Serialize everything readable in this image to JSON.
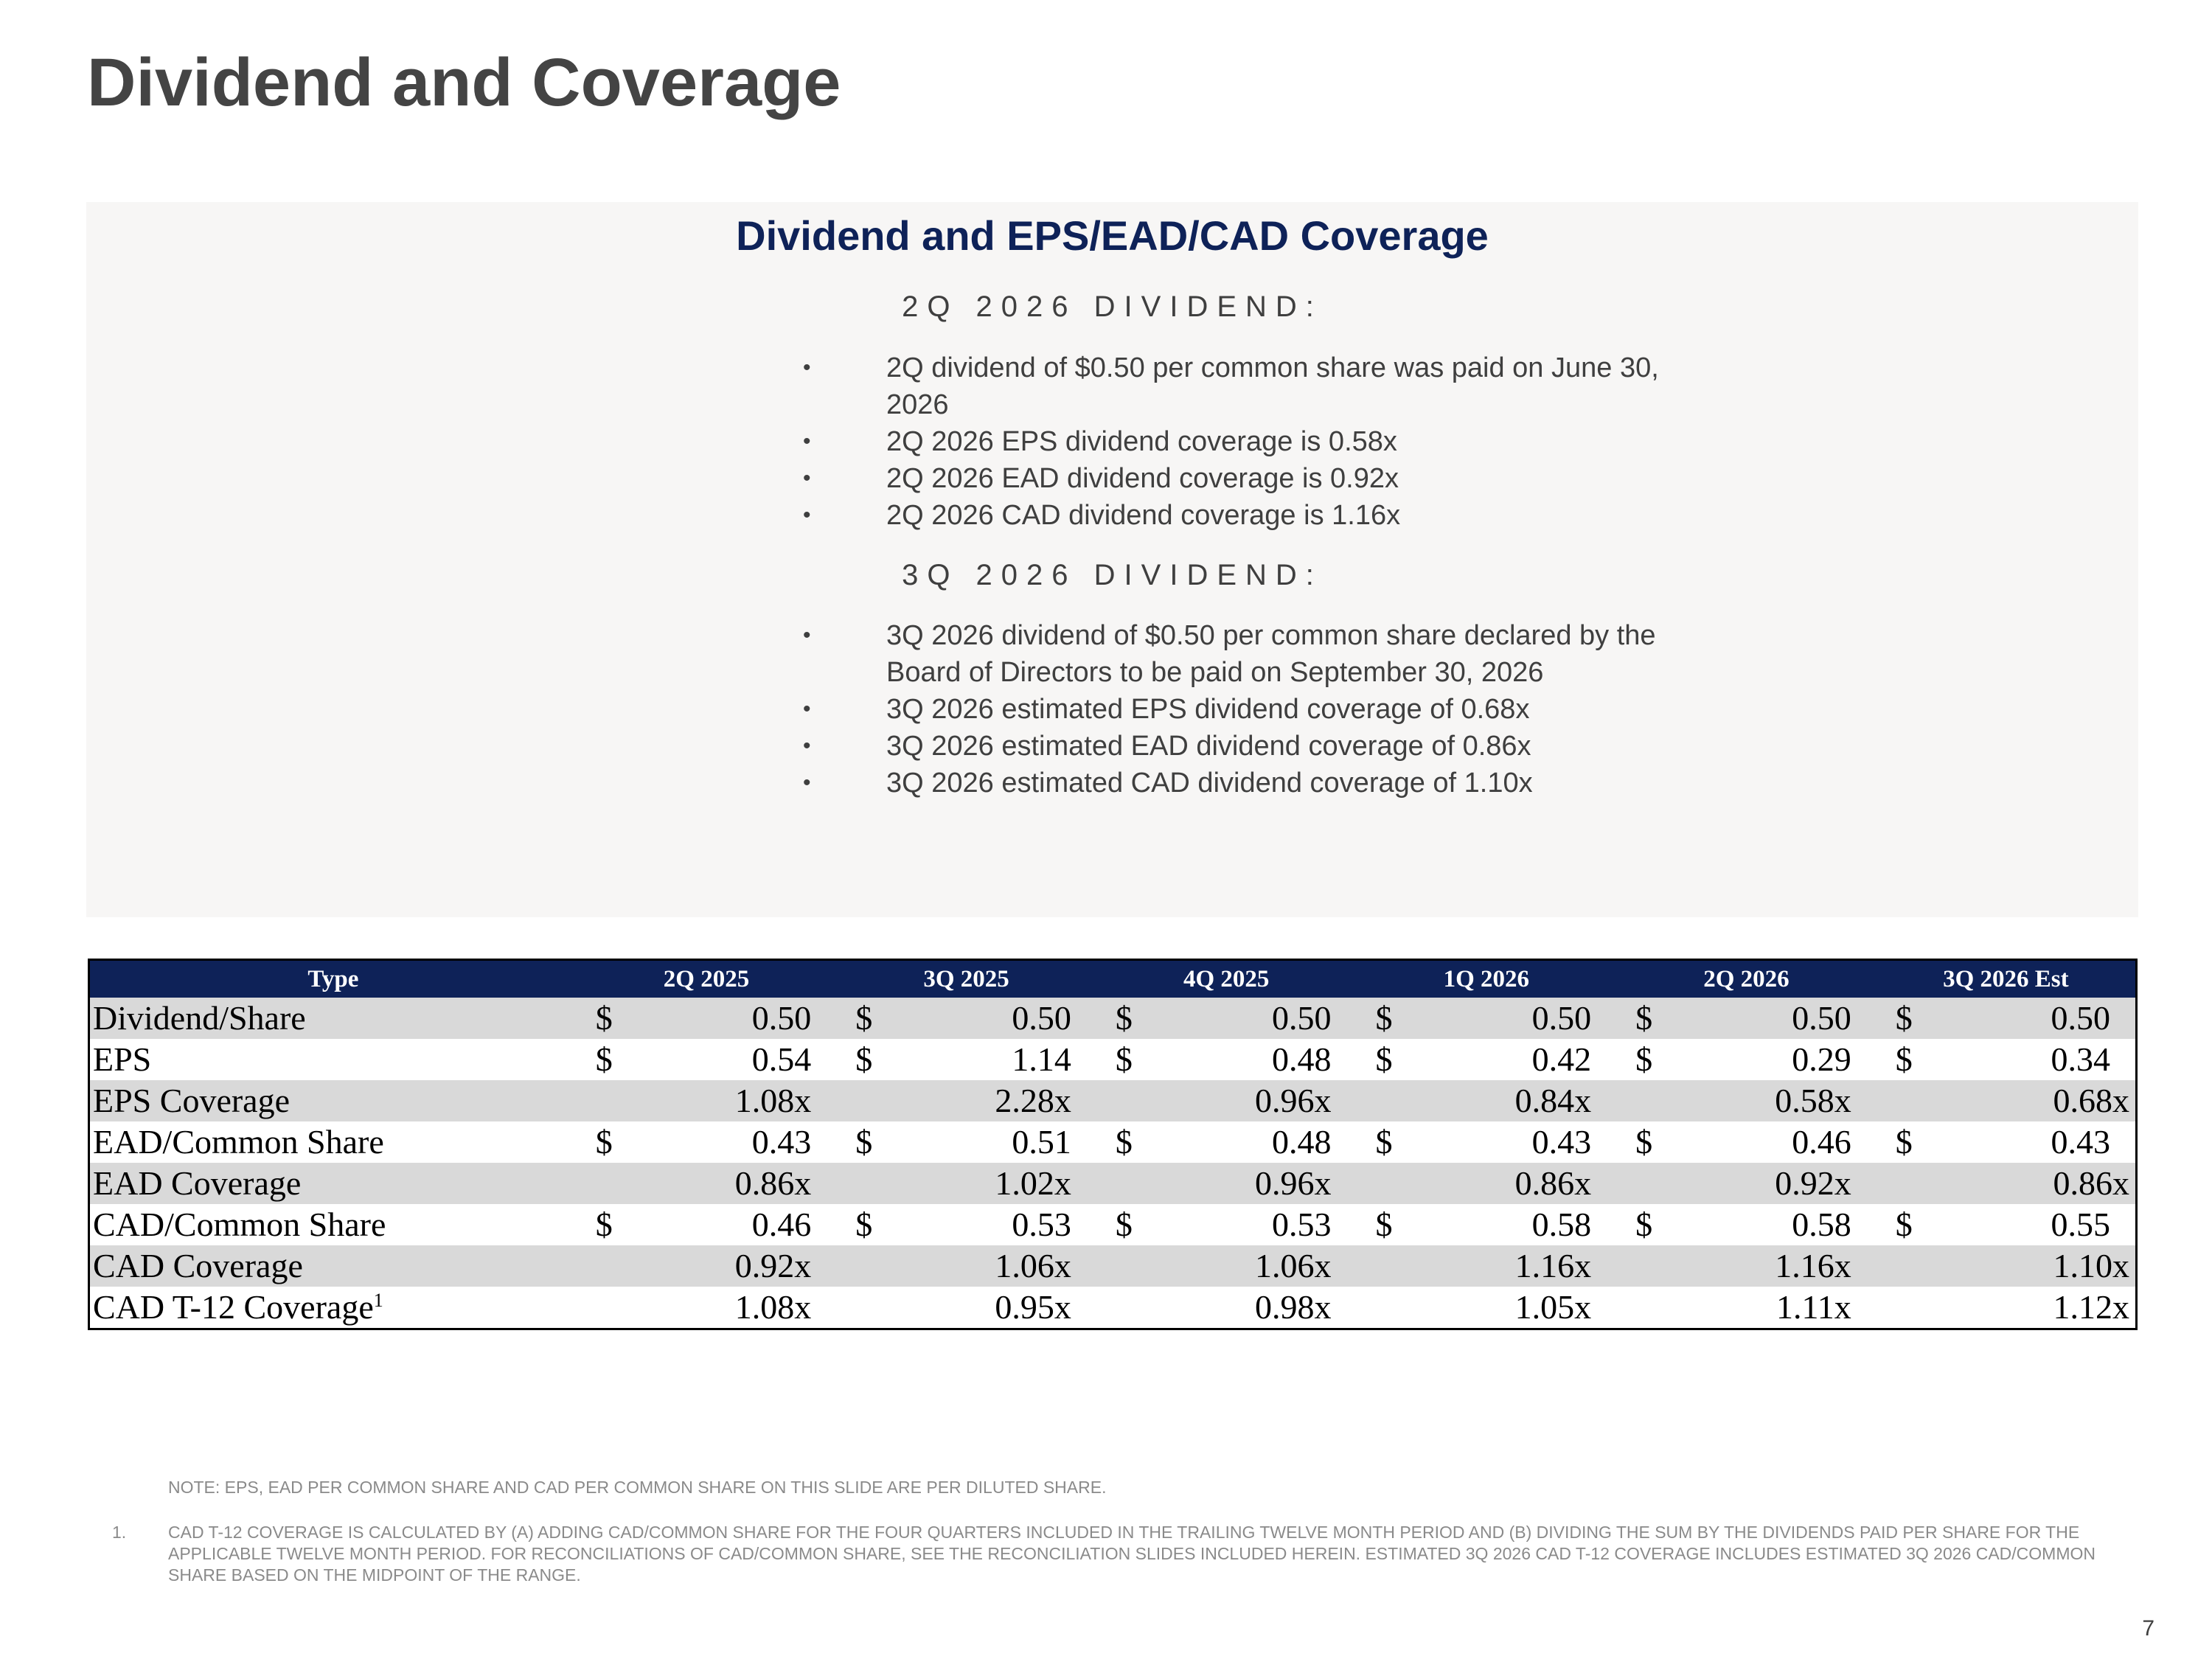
{
  "page": {
    "title": "Dividend and Coverage",
    "page_number": "7"
  },
  "panel": {
    "title": "Dividend and EPS/EAD/CAD Coverage",
    "sections": [
      {
        "heading": "2Q 2026 DIVIDEND:",
        "bullets": [
          "2Q dividend of $0.50 per common share was paid on June 30, 2026",
          "2Q 2026 EPS dividend coverage is 0.58x",
          "2Q 2026 EAD dividend coverage is 0.92x",
          "2Q 2026 CAD dividend coverage is 1.16x"
        ]
      },
      {
        "heading": "3Q 2026 DIVIDEND:",
        "bullets": [
          "3Q 2026 dividend of $0.50 per common share declared by the Board of Directors to be paid on September 30, 2026",
          "3Q 2026 estimated EPS dividend coverage of 0.68x",
          "3Q 2026 estimated EAD dividend coverage of 0.86x",
          "3Q 2026 estimated CAD dividend coverage of 1.10x"
        ]
      }
    ],
    "bullet_symbol": "•"
  },
  "table": {
    "headers": [
      "Type",
      "2Q 2025",
      "3Q 2025",
      "4Q 2025",
      "1Q 2026",
      "2Q 2026",
      "3Q 2026 Est"
    ],
    "dollar_sign": "$",
    "rows": [
      {
        "label": "Dividend/Share",
        "has_dollar": true,
        "values": [
          "0.50",
          "0.50",
          "0.50",
          "0.50",
          "0.50",
          "0.50"
        ]
      },
      {
        "label": "EPS",
        "has_dollar": true,
        "values": [
          "0.54",
          "1.14",
          "0.48",
          "0.42",
          "0.29",
          "0.34"
        ]
      },
      {
        "label": "EPS Coverage",
        "has_dollar": false,
        "values": [
          "1.08x",
          "2.28x",
          "0.96x",
          "0.84x",
          "0.58x",
          "0.68x"
        ]
      },
      {
        "label": "EAD/Common Share",
        "has_dollar": true,
        "values": [
          "0.43",
          "0.51",
          "0.48",
          "0.43",
          "0.46",
          "0.43"
        ]
      },
      {
        "label": "EAD Coverage",
        "has_dollar": false,
        "values": [
          "0.86x",
          "1.02x",
          "0.96x",
          "0.86x",
          "0.92x",
          "0.86x"
        ]
      },
      {
        "label": "CAD/Common Share",
        "has_dollar": true,
        "values": [
          "0.46",
          "0.53",
          "0.53",
          "0.58",
          "0.58",
          "0.55"
        ]
      },
      {
        "label": "CAD Coverage",
        "has_dollar": false,
        "values": [
          "0.92x",
          "1.06x",
          "1.06x",
          "1.16x",
          "1.16x",
          "1.10x"
        ]
      },
      {
        "label": "CAD T-12 Coverage",
        "footnote_marker": "1",
        "has_dollar": false,
        "values": [
          "1.08x",
          "0.95x",
          "0.98x",
          "1.05x",
          "1.11x",
          "1.12x"
        ]
      }
    ]
  },
  "notes": {
    "note": "NOTE: EPS, EAD PER COMMON SHARE AND CAD PER COMMON SHARE ON THIS SLIDE ARE PER DILUTED SHARE.",
    "footnote_number": "1.",
    "footnote_text": "CAD T-12 COVERAGE IS CALCULATED BY (A) ADDING CAD/COMMON SHARE FOR THE FOUR QUARTERS INCLUDED IN THE TRAILING TWELVE MONTH PERIOD AND (B) DIVIDING THE SUM BY THE DIVIDENDS PAID PER SHARE FOR THE APPLICABLE TWELVE MONTH PERIOD. FOR RECONCILIATIONS OF CAD/COMMON SHARE, SEE THE RECONCILIATION SLIDES INCLUDED HEREIN. ESTIMATED 3Q 2026 CAD T-12 COVERAGE INCLUDES ESTIMATED 3Q 2026 CAD/COMMON SHARE BASED ON THE MIDPOINT OF THE RANGE."
  },
  "colors": {
    "title_text": "#444444",
    "panel_background": "#f7f6f5",
    "panel_title": "#0e2258",
    "table_header_bg": "#0e2258",
    "table_shaded_row": "#d9d9d9",
    "note_text": "#8a8a8a"
  }
}
